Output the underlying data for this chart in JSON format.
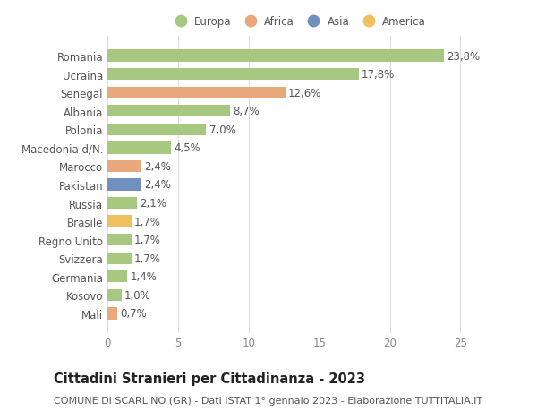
{
  "countries": [
    "Mali",
    "Kosovo",
    "Germania",
    "Svizzera",
    "Regno Unito",
    "Brasile",
    "Russia",
    "Pakistan",
    "Marocco",
    "Macedonia d/N.",
    "Polonia",
    "Albania",
    "Senegal",
    "Ucraina",
    "Romania"
  ],
  "values": [
    0.7,
    1.0,
    1.4,
    1.7,
    1.7,
    1.7,
    2.1,
    2.4,
    2.4,
    4.5,
    7.0,
    8.7,
    12.6,
    17.8,
    23.8
  ],
  "labels": [
    "0,7%",
    "1,0%",
    "1,4%",
    "1,7%",
    "1,7%",
    "1,7%",
    "2,1%",
    "2,4%",
    "2,4%",
    "4,5%",
    "7,0%",
    "8,7%",
    "12,6%",
    "17,8%",
    "23,8%"
  ],
  "colors": [
    "#e8a87c",
    "#a8c882",
    "#a8c882",
    "#a8c882",
    "#a8c882",
    "#f0c060",
    "#a8c882",
    "#7090c0",
    "#e8a87c",
    "#a8c882",
    "#a8c882",
    "#a8c882",
    "#e8a87c",
    "#a8c882",
    "#a8c882"
  ],
  "legend_labels": [
    "Europa",
    "Africa",
    "Asia",
    "America"
  ],
  "legend_colors": [
    "#a8c882",
    "#e8a87c",
    "#7090c0",
    "#f0c060"
  ],
  "title": "Cittadini Stranieri per Cittadinanza - 2023",
  "subtitle": "COMUNE DI SCARLINO (GR) - Dati ISTAT 1° gennaio 2023 - Elaborazione TUTTITALIA.IT",
  "xlim": [
    0,
    27
  ],
  "xticks": [
    0,
    5,
    10,
    15,
    20,
    25
  ],
  "bg_color": "#ffffff",
  "grid_color": "#dddddd",
  "bar_height": 0.65,
  "label_fontsize": 8.5,
  "tick_fontsize": 8.5,
  "title_fontsize": 10.5,
  "subtitle_fontsize": 8
}
